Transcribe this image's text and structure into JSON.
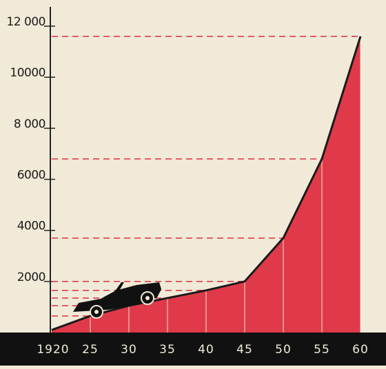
{
  "chart_data": {
    "type": "area",
    "categories": [
      "1920",
      "25",
      "30",
      "35",
      "40",
      "45",
      "50",
      "55",
      "60"
    ],
    "values": [
      100,
      650,
      1050,
      1350,
      1650,
      2000,
      3700,
      6800,
      11600
    ],
    "color": "#e03a4a",
    "ylim": [
      0,
      12000
    ],
    "yticks": [
      {
        "value": 2000,
        "label": "2000"
      },
      {
        "value": 4000,
        "label": "4000"
      },
      {
        "value": 6000,
        "label": "6000"
      },
      {
        "value": 8000,
        "label": "8 000"
      },
      {
        "value": 10000,
        "label": "10000"
      },
      {
        "value": 12000,
        "label": "12 000"
      }
    ]
  }
}
